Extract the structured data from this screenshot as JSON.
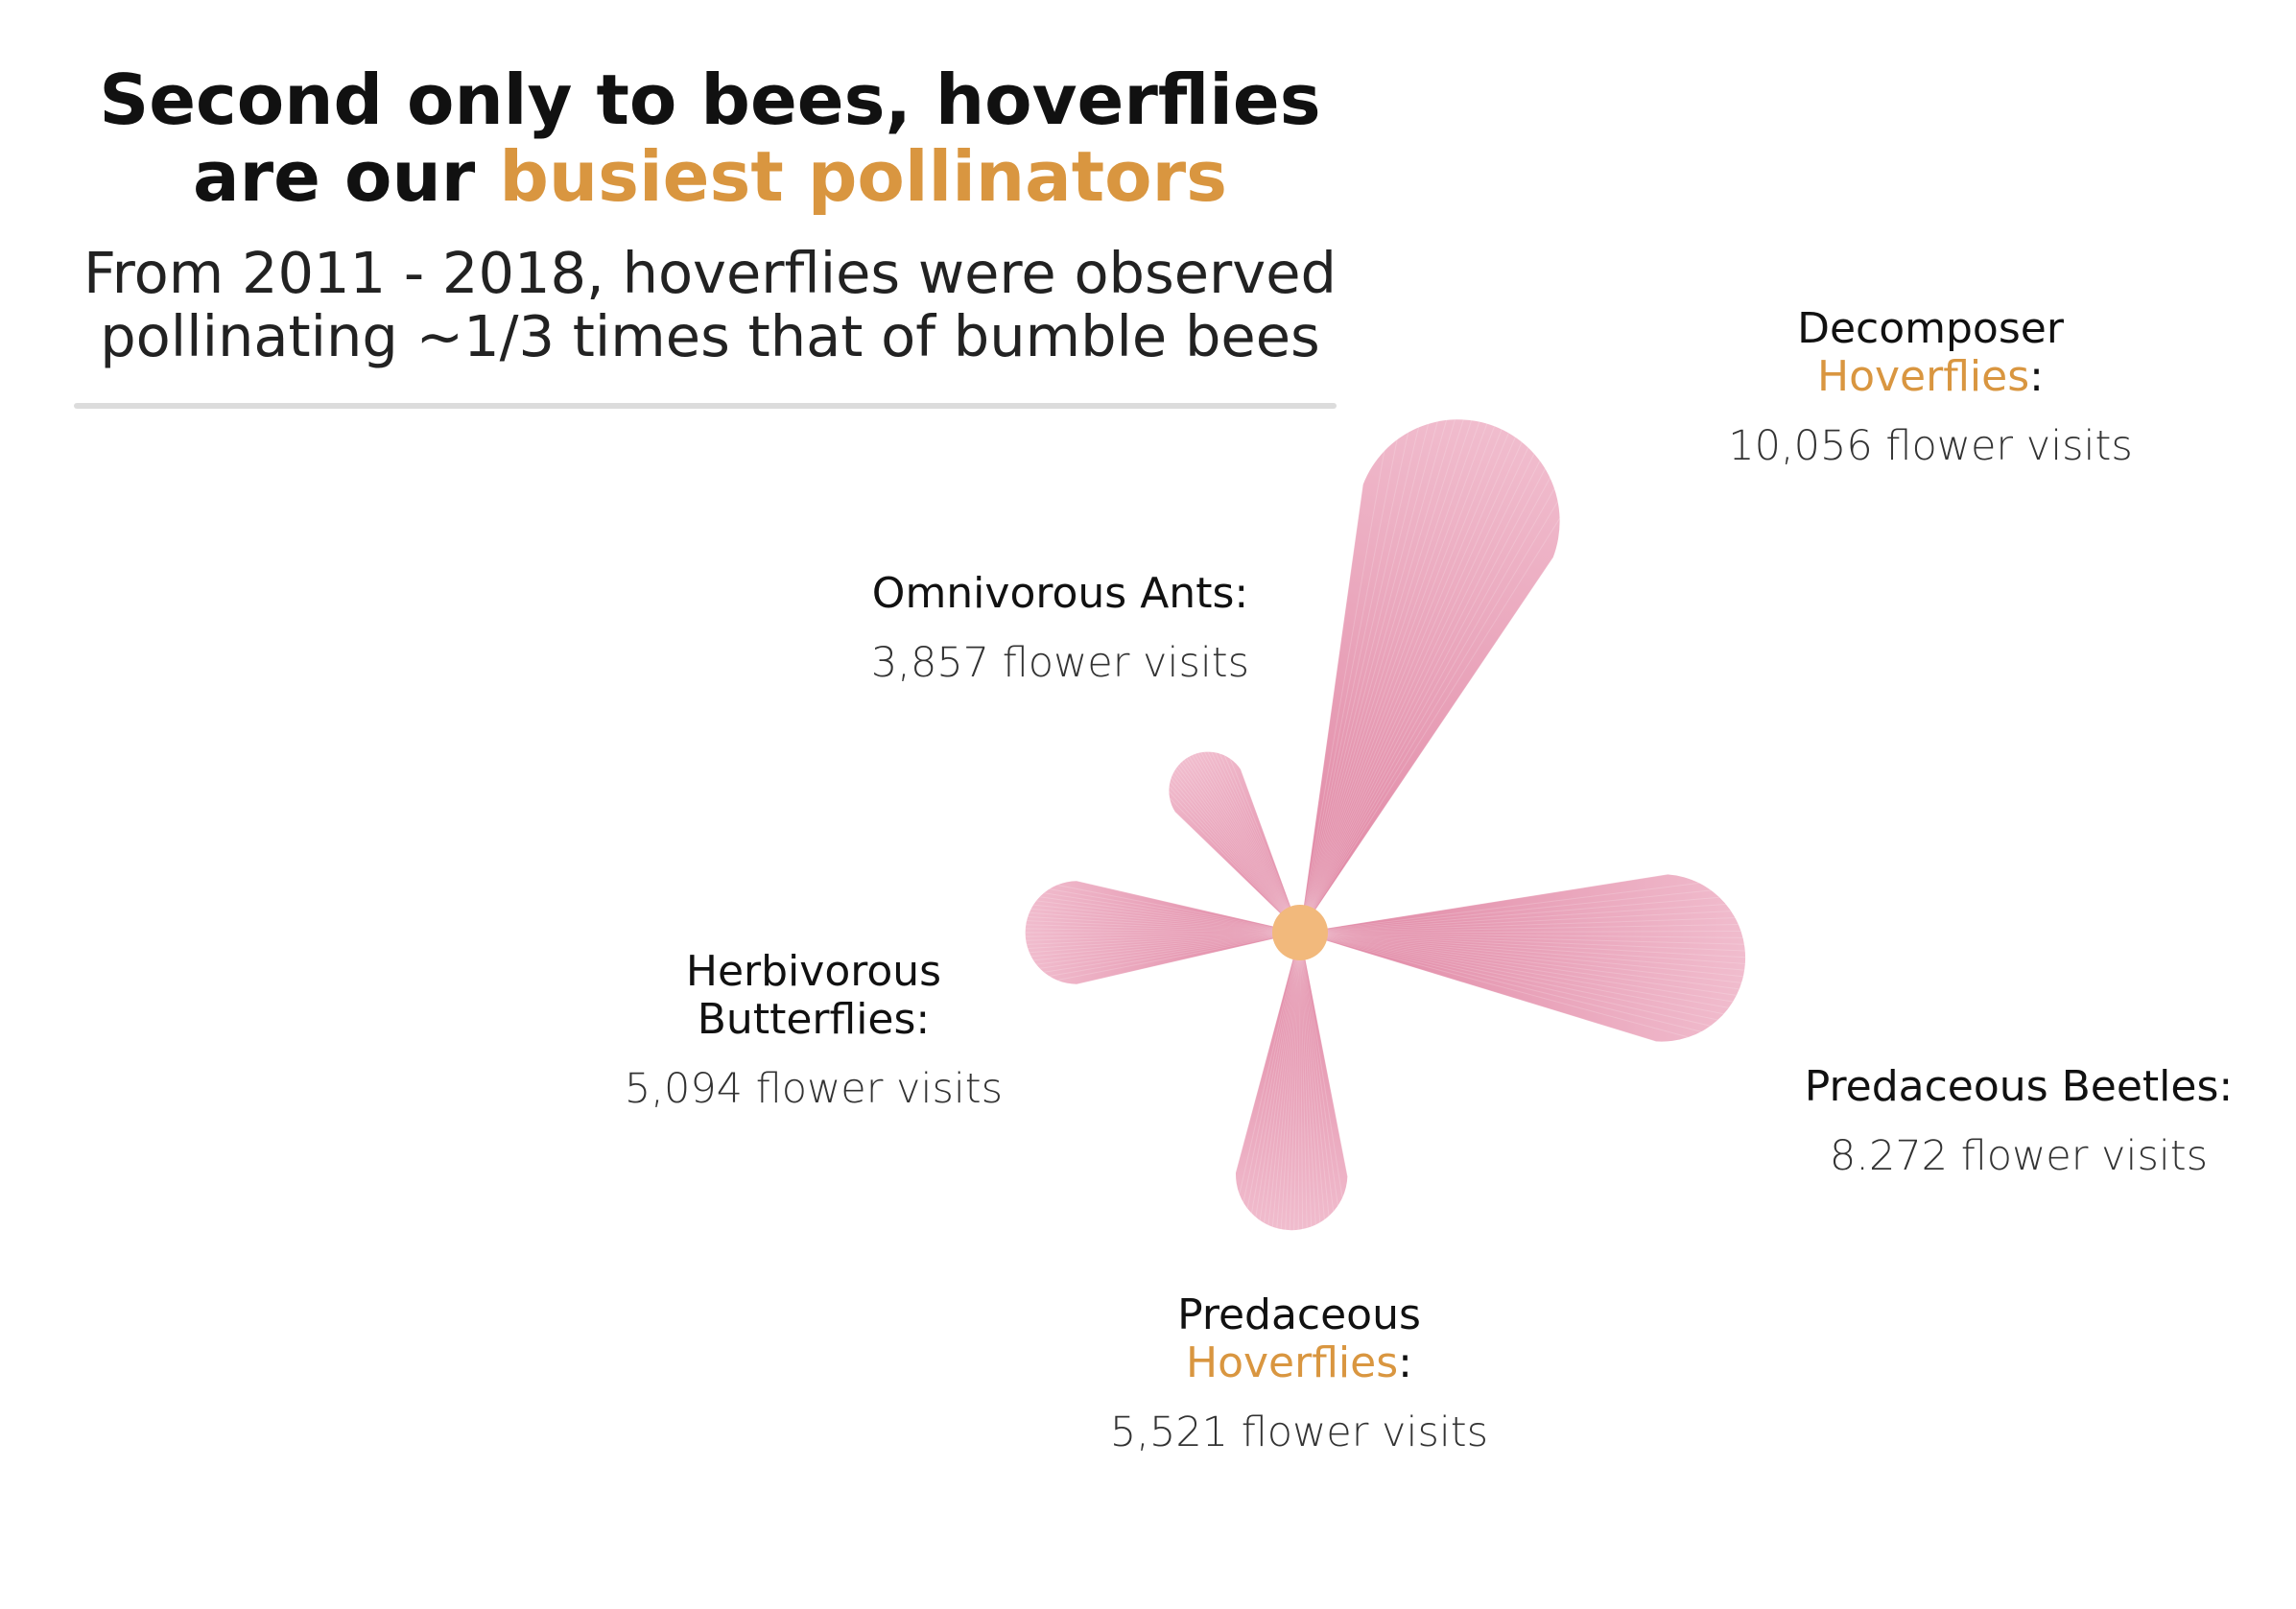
{
  "header": {
    "title_line1": "Second only to bees, hoverflies",
    "title_line2_prefix": "are our ",
    "title_line2_accent": "busiest pollinators",
    "subtitle_line1": "From 2011 - 2018, hoverflies were observed",
    "subtitle_line2": "pollinating ~1/3 times that of bumble bees"
  },
  "colors": {
    "accent": "#d99640",
    "petal": "#e490a8",
    "center": "#f2b97c"
  },
  "chart_data": {
    "type": "polar-petal",
    "unit": "flower visits",
    "series": [
      {
        "name_line1": "Decomposer",
        "name_line2": "Hoverflies",
        "name_suffix": ":",
        "value": 10056,
        "value_label": "10,056 flower visits",
        "direction": "upper-right"
      },
      {
        "name_line1": "Predaceous Beetles:",
        "value": 8272,
        "value_label": "8.272 flower visits",
        "direction": "right"
      },
      {
        "name_line1": "Predaceous",
        "name_line2": "Hoverflies",
        "name_suffix": ":",
        "value": 5521,
        "value_label": "5,521 flower visits",
        "direction": "down"
      },
      {
        "name_line1": "Herbivorous",
        "name_line2": "Butterflies:",
        "value": 5094,
        "value_label": "5,094 flower visits",
        "direction": "left"
      },
      {
        "name_line1": "Omnivorous Ants:",
        "value": 3857,
        "value_label": "3,857 flower visits",
        "direction": "upper-left"
      }
    ]
  }
}
